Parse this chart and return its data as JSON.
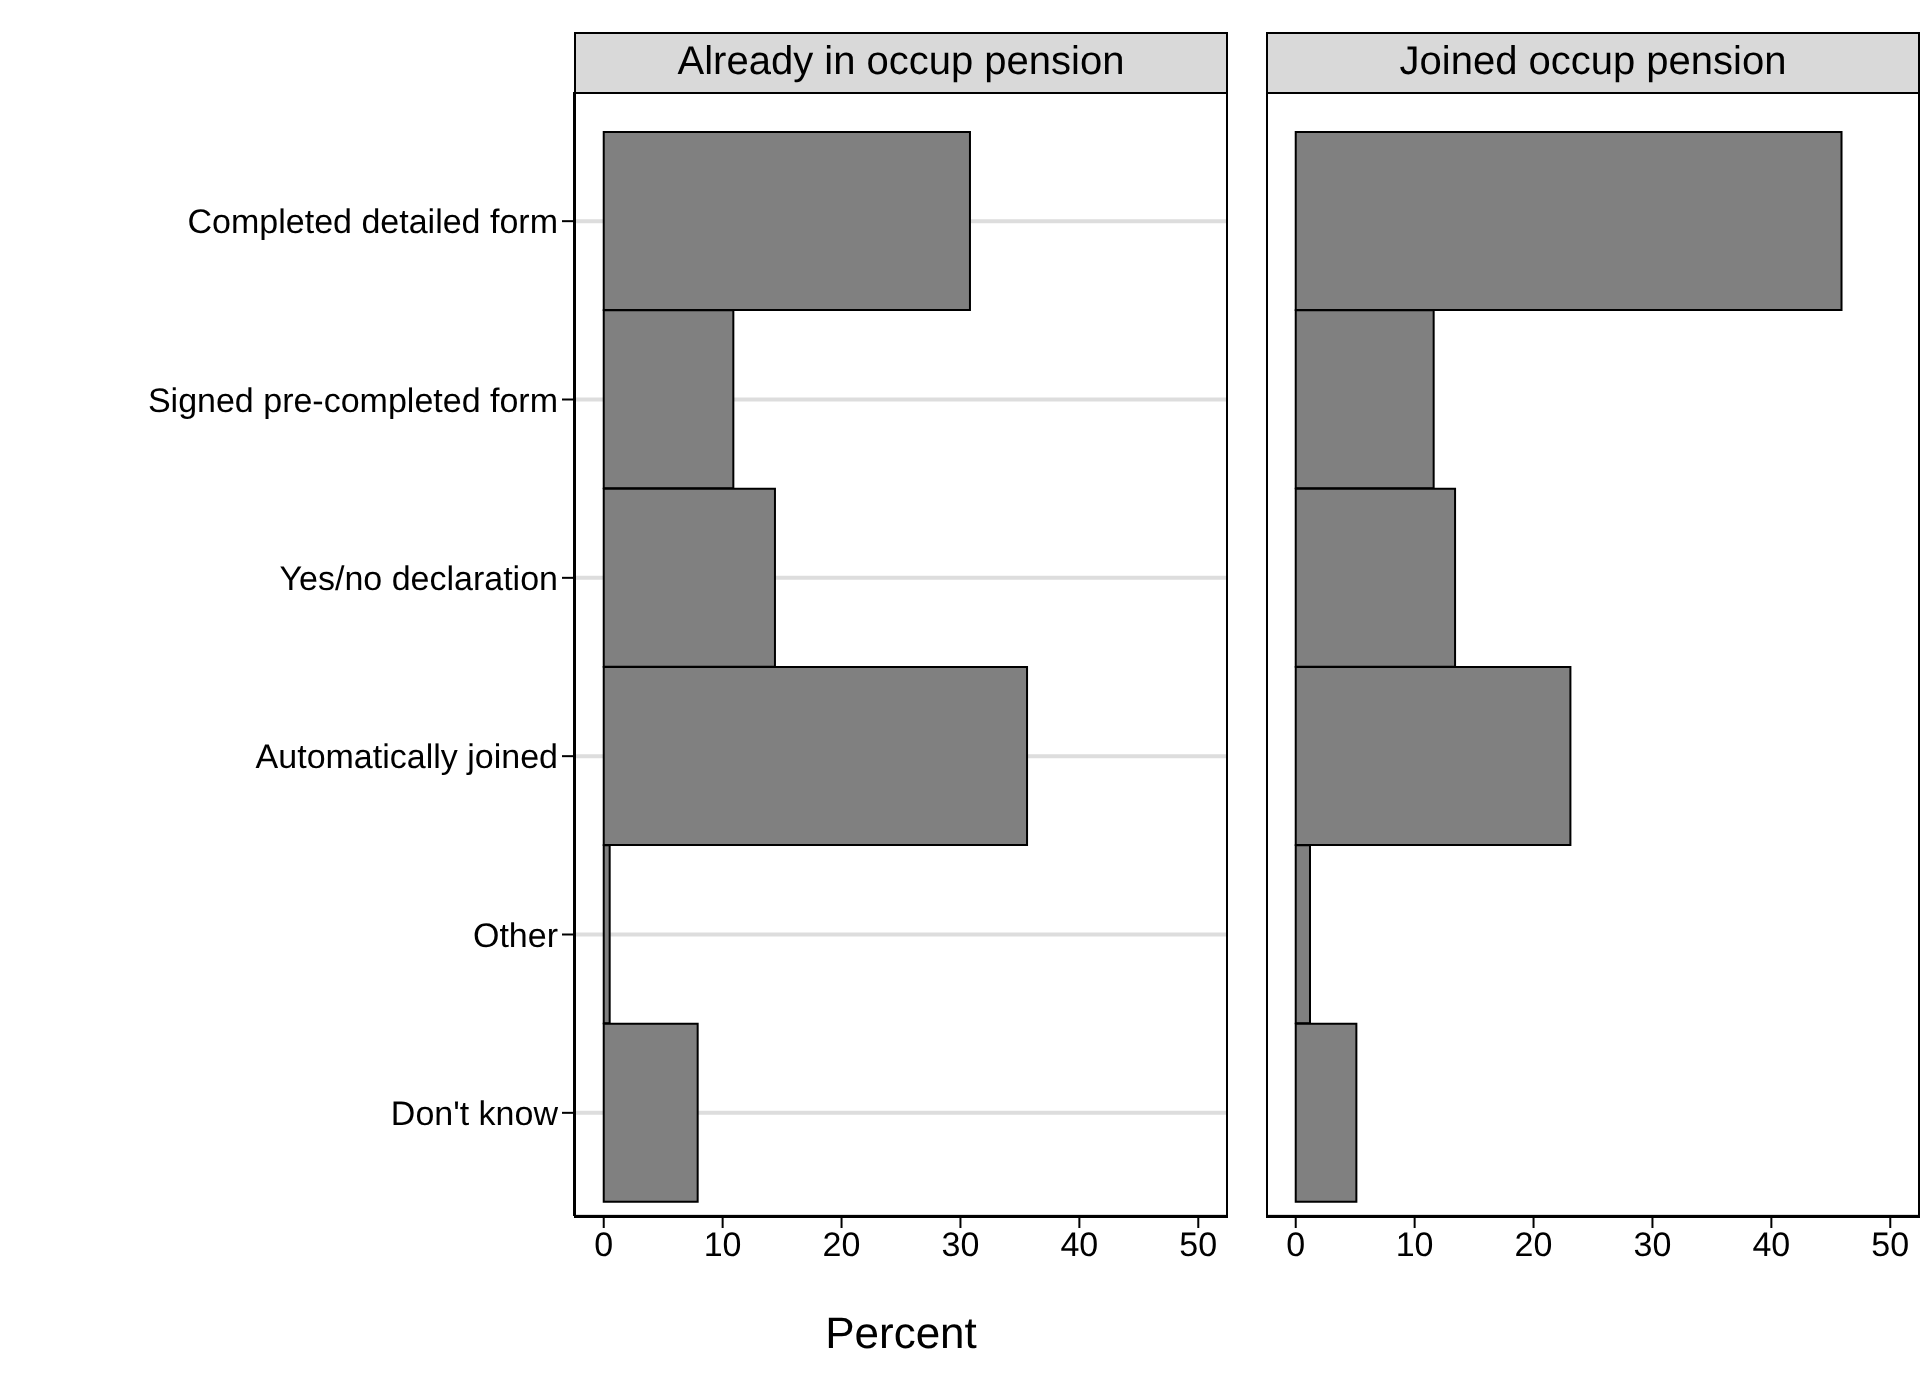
{
  "chart_data": [
    {
      "type": "bar",
      "orientation": "horizontal",
      "title": "Already in occup pension",
      "xlabel": "Percent",
      "categories": [
        "Completed detailed form",
        "Signed pre-completed form",
        "Yes/no declaration",
        "Automatically joined",
        "Other",
        "Don't know"
      ],
      "values": [
        30.8,
        10.9,
        14.4,
        35.6,
        0.5,
        7.9
      ],
      "color": "#808080",
      "xlim": [
        -2.5,
        52.5
      ],
      "xticks": [
        0,
        10,
        20,
        30,
        40,
        50
      ],
      "grid": "y"
    },
    {
      "type": "bar",
      "orientation": "horizontal",
      "title": "Joined occup pension",
      "categories": [
        null,
        null,
        null,
        null,
        null,
        null
      ],
      "values": [
        45.9,
        11.6,
        13.4,
        23.1,
        1.2,
        5.1
      ],
      "color": "#808080",
      "xlim": [
        -2.5,
        52.5
      ],
      "xticks": [
        0,
        10,
        20,
        30,
        40,
        50
      ],
      "grid": "y",
      "tick_labels": "x"
    }
  ]
}
